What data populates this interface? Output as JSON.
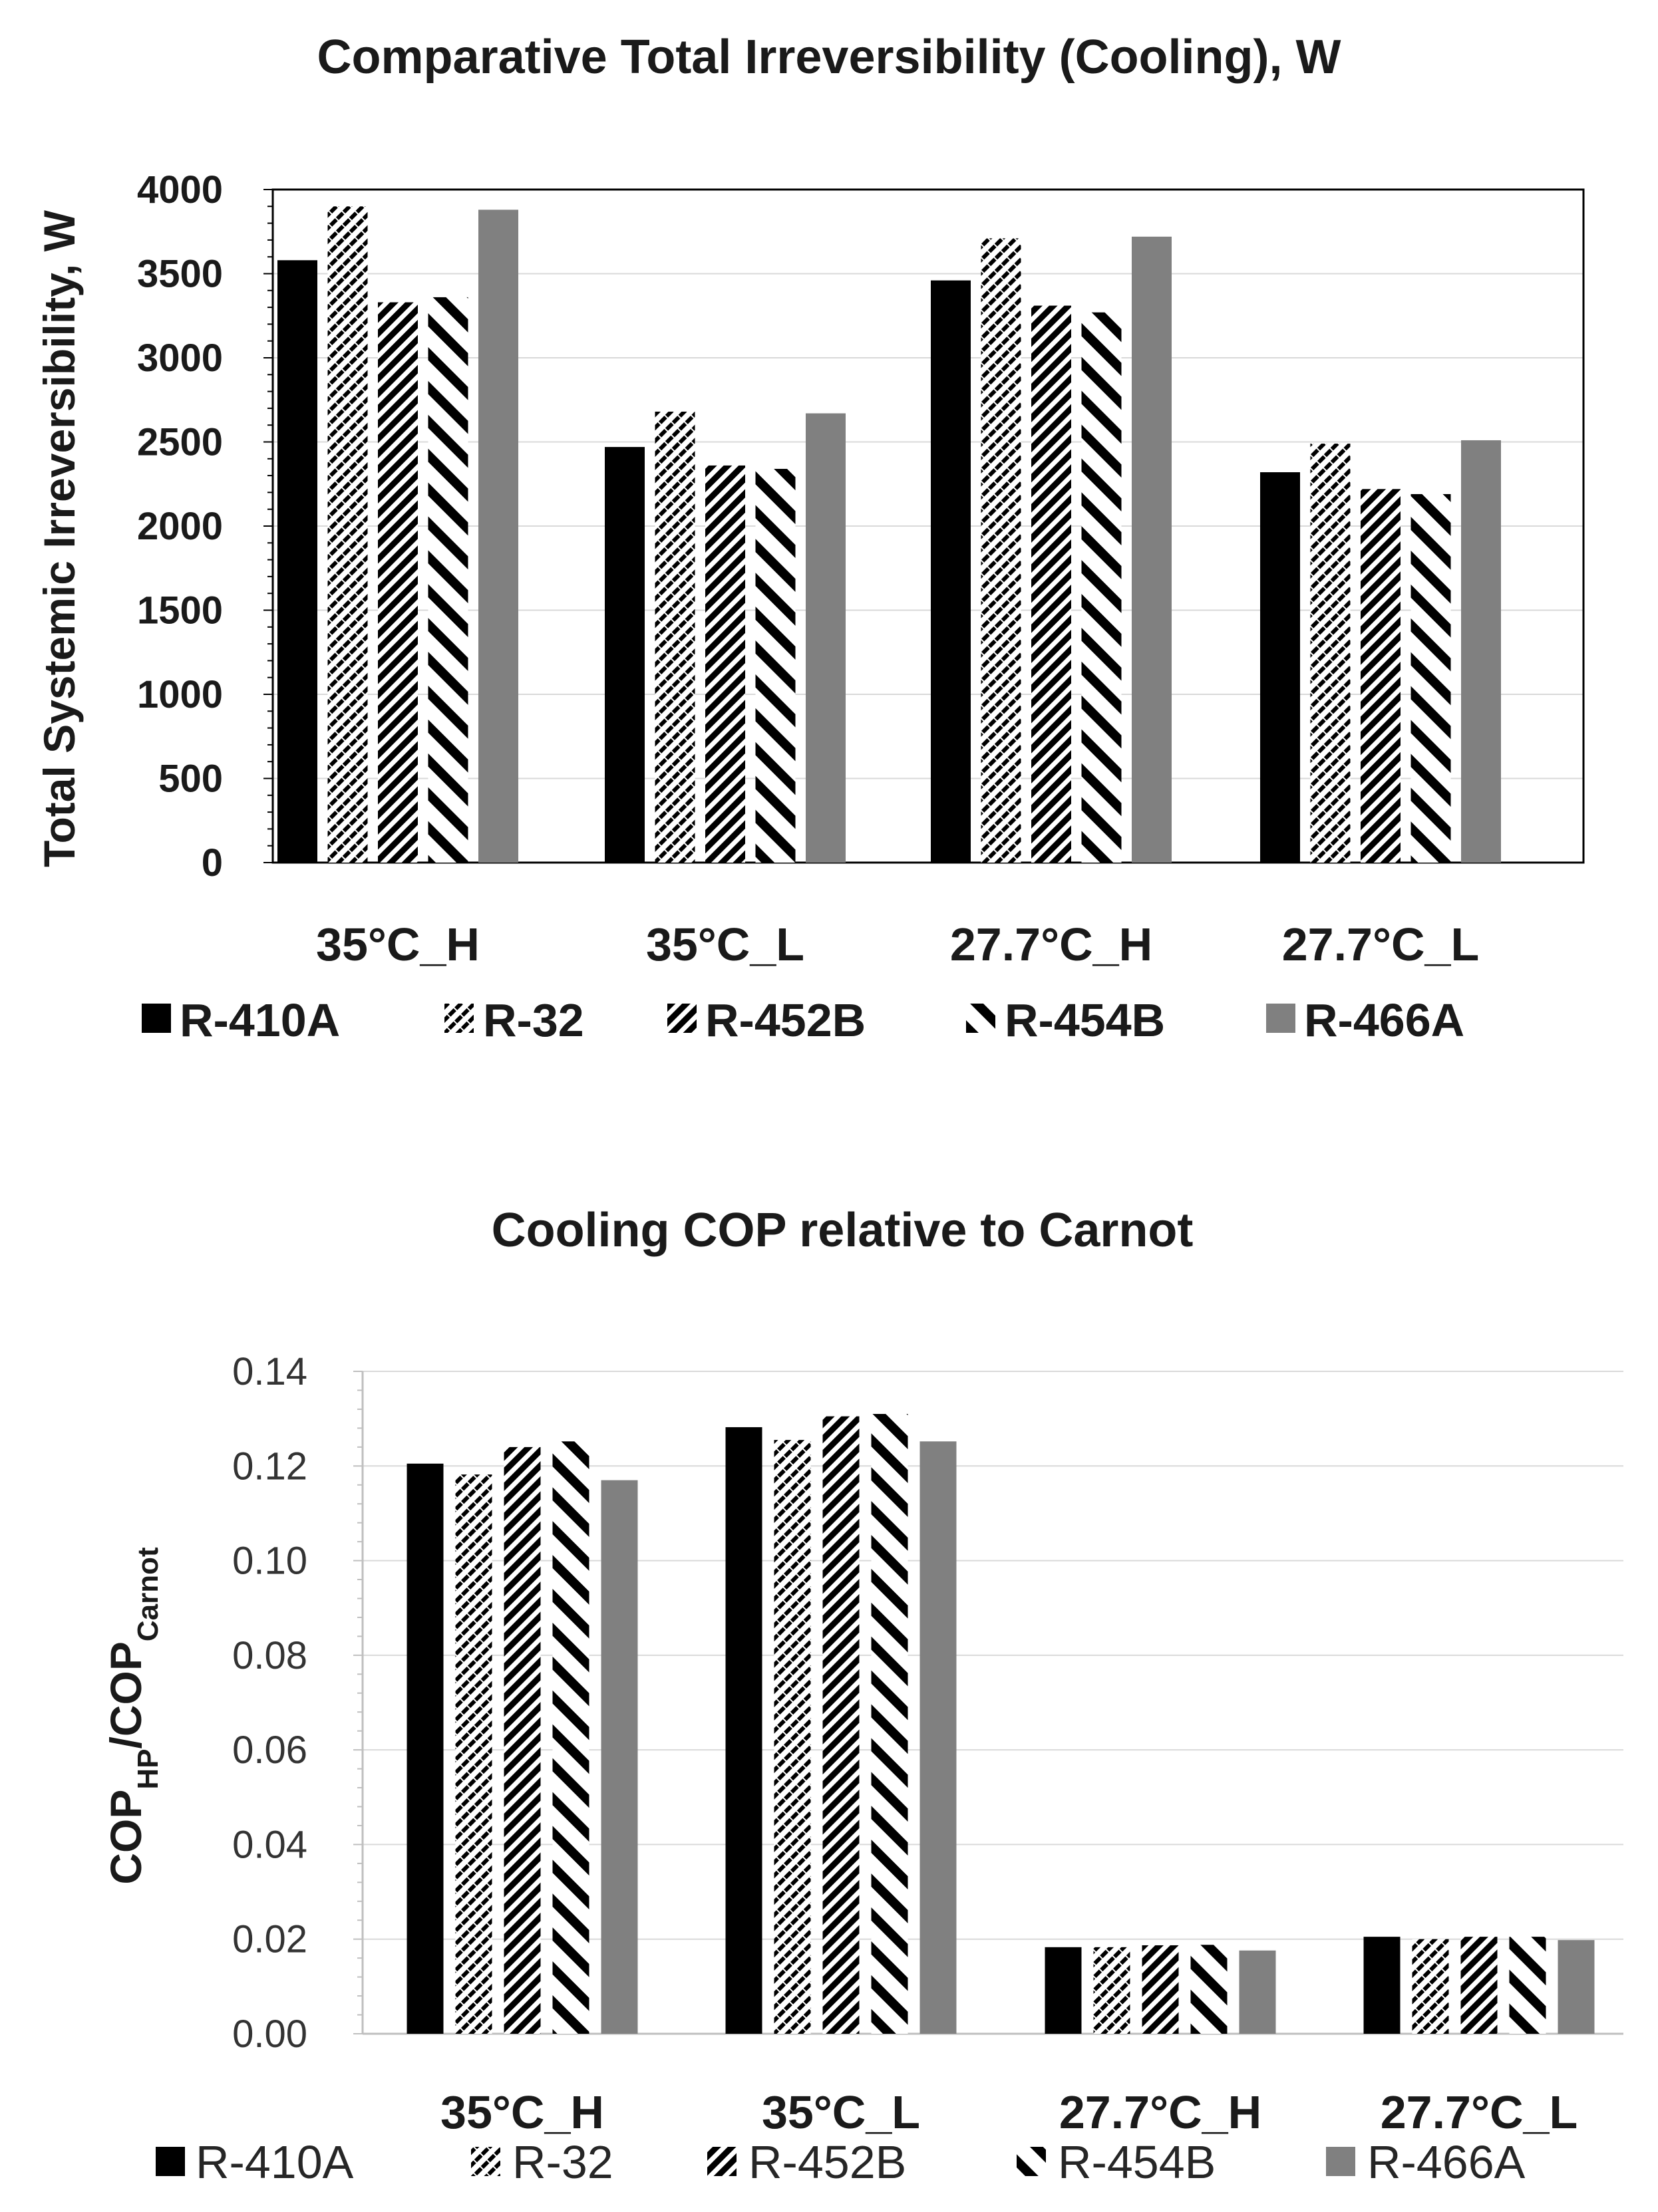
{
  "chart_data": [
    {
      "type": "bar",
      "title": "Comparative  Total Irreversibility (Cooling), W",
      "xlabel": "",
      "ylabel": "Total Systemic Irreversibility, W",
      "ylim": [
        0,
        4000
      ],
      "yticks": [
        "0",
        "500",
        "1000",
        "1500",
        "2000",
        "2500",
        "3000",
        "3500",
        "4000"
      ],
      "grid": true,
      "legend_position": "bottom",
      "categories": [
        "35°C_H",
        "35°C_L",
        "27.7°C_H",
        "27.7°C_L"
      ],
      "series": [
        {
          "name": "R-410A",
          "pattern": "solid-black",
          "values": [
            3580,
            2470,
            3460,
            2320
          ]
        },
        {
          "name": "R-32",
          "pattern": "cross-hatch",
          "values": [
            3900,
            2680,
            3710,
            2490
          ]
        },
        {
          "name": "R-452B",
          "pattern": "diagonal-dense",
          "values": [
            3330,
            2360,
            3310,
            2220
          ]
        },
        {
          "name": "R-454B",
          "pattern": "diagonal-wide",
          "values": [
            3360,
            2340,
            3270,
            2190
          ]
        },
        {
          "name": "R-466A",
          "pattern": "solid-gray",
          "values": [
            3880,
            2670,
            3720,
            2510
          ]
        }
      ]
    },
    {
      "type": "bar",
      "title": "Cooling COP relative to Carnot",
      "xlabel": "",
      "ylabel": {
        "main": "COP",
        "sub1": "HP",
        "mid": "/COP",
        "sub2": "Carnot"
      },
      "ylim": [
        0,
        0.14
      ],
      "yticks": [
        "0.00",
        "0.02",
        "0.04",
        "0.06",
        "0.08",
        "0.10",
        "0.12",
        "0.14"
      ],
      "grid": true,
      "legend_position": "bottom",
      "categories": [
        "35°C_H",
        "35°C_L",
        "27.7°C_H",
        "27.7°C_L"
      ],
      "series": [
        {
          "name": "R-410A",
          "pattern": "solid-black",
          "values": [
            0.1205,
            0.1282,
            0.0183,
            0.0205
          ]
        },
        {
          "name": "R-32",
          "pattern": "cross-hatch",
          "values": [
            0.1182,
            0.1255,
            0.0183,
            0.02
          ]
        },
        {
          "name": "R-452B",
          "pattern": "diagonal-dense",
          "values": [
            0.124,
            0.1305,
            0.0187,
            0.0205
          ]
        },
        {
          "name": "R-454B",
          "pattern": "diagonal-wide",
          "values": [
            0.1252,
            0.131,
            0.0188,
            0.0205
          ]
        },
        {
          "name": "R-466A",
          "pattern": "solid-gray",
          "values": [
            0.117,
            0.1252,
            0.0176,
            0.0198
          ]
        }
      ]
    }
  ],
  "colors": {
    "black": "#000000",
    "gray": "#808080",
    "grid": "#d9d9d9",
    "axis": "#bfbfbf",
    "plot_border": "#000000"
  }
}
